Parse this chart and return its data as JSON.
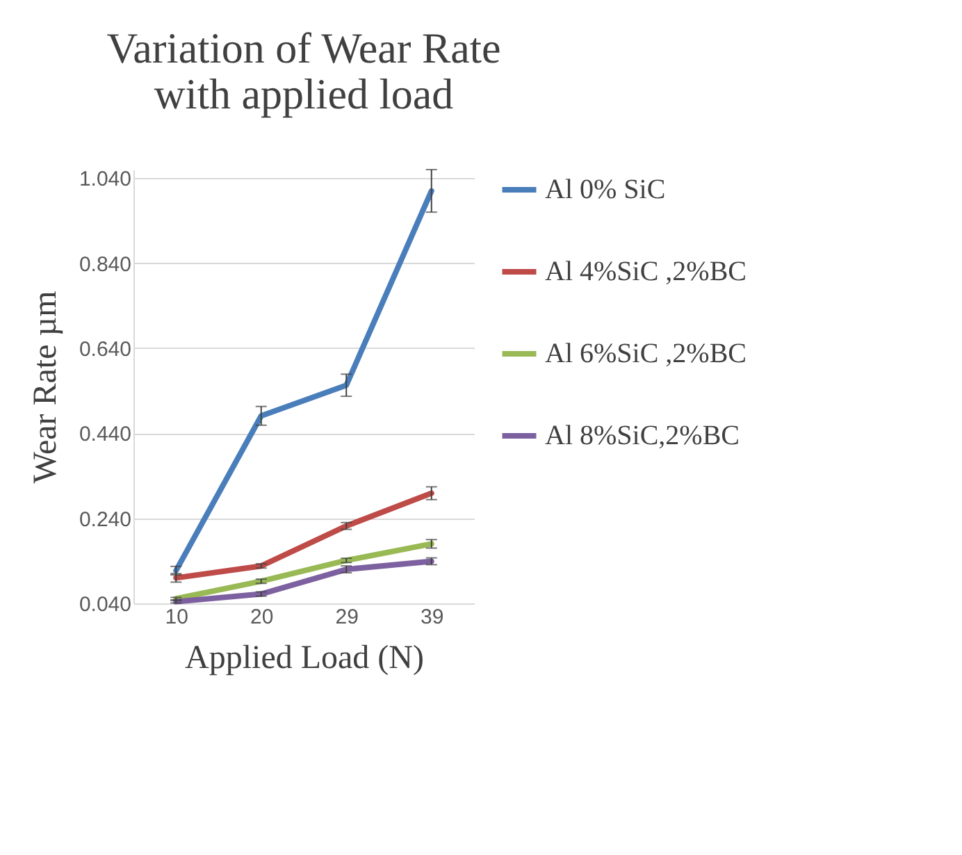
{
  "chart_data": {
    "type": "line",
    "title": "Variation of Wear Rate  with applied load",
    "xlabel": "Applied Load (N)",
    "ylabel": "Wear Rate µm",
    "categories": [
      "10",
      "20",
      "29",
      "39"
    ],
    "series": [
      {
        "name": "Al 0%  SiC",
        "color": "#4a7ebb",
        "values": [
          0.117,
          0.481,
          0.553,
          1.01
        ],
        "errors": [
          0.01,
          0.022,
          0.026,
          0.05
        ]
      },
      {
        "name": "Al 4%SiC ,2%BC",
        "color": "#be4b48",
        "values": [
          0.1,
          0.128,
          0.222,
          0.299
        ],
        "errors": [
          0.01,
          0.005,
          0.008,
          0.015
        ]
      },
      {
        "name": "Al 6%SiC ,2%BC",
        "color": "#98b954",
        "values": [
          0.051,
          0.092,
          0.141,
          0.18
        ],
        "errors": [
          0.003,
          0.005,
          0.005,
          0.01
        ]
      },
      {
        "name": "Al 8%SiC,2%BC",
        "color": "#7d60a0",
        "values": [
          0.044,
          0.062,
          0.12,
          0.139
        ],
        "errors": [
          0.003,
          0.005,
          0.008,
          0.008
        ]
      }
    ],
    "ylim": [
      0.04,
      1.06
    ],
    "yticks": [
      {
        "value": 0.04,
        "label": "0.040"
      },
      {
        "value": 0.24,
        "label": "0.240"
      },
      {
        "value": 0.44,
        "label": "0.440"
      },
      {
        "value": 0.64,
        "label": "0.640"
      },
      {
        "value": 0.84,
        "label": "0.840"
      },
      {
        "value": 1.04,
        "label": "1.040"
      }
    ],
    "grid": "y",
    "legend": "right",
    "marker": "none",
    "line_style": "solid"
  }
}
